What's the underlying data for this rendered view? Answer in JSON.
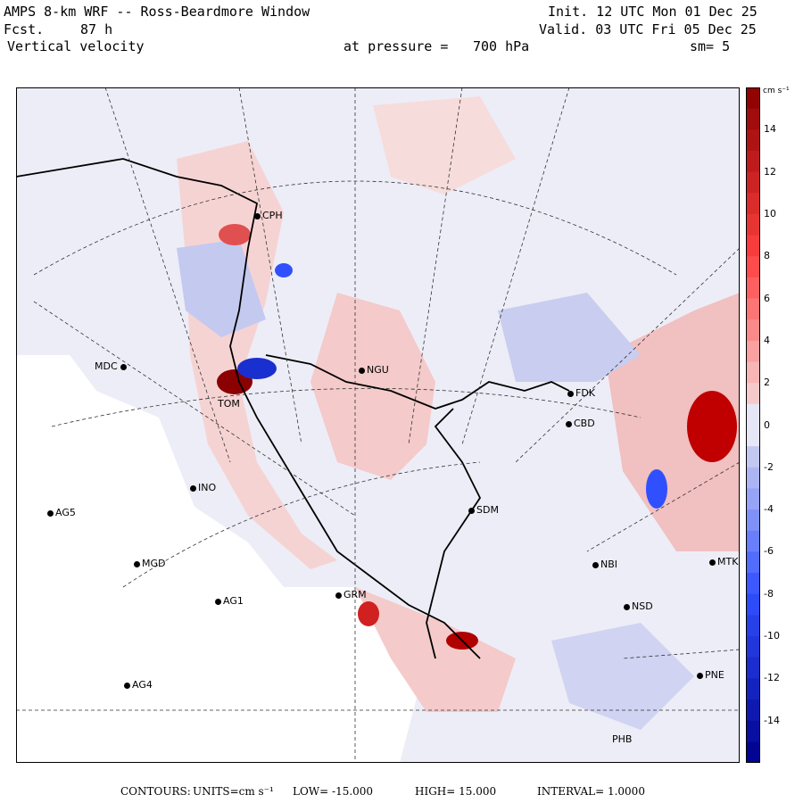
{
  "header": {
    "title": "AMPS 8-km WRF -- Ross-Beardmore Window",
    "forecast_label": "Fcst.",
    "forecast_hours": "87 h",
    "field": "Vertical velocity",
    "init": "Init. 12 UTC Mon 01 Dec 25",
    "valid": "Valid. 03 UTC Fri 05 Dec 25",
    "pressure_label": "at pressure =",
    "pressure_value": "700 hPa",
    "smoothing": "sm= 5"
  },
  "colorbar": {
    "units": "cm s⁻¹",
    "ticks": [
      "14",
      "12",
      "10",
      "8",
      "6",
      "4",
      "2",
      "0",
      "-2",
      "-4",
      "-6",
      "-8",
      "-10",
      "-12",
      "-14"
    ],
    "tick_values": [
      14,
      12,
      10,
      8,
      6,
      4,
      2,
      0,
      -2,
      -4,
      -6,
      -8,
      -10,
      -12,
      -14
    ],
    "min": -16,
    "max": 16,
    "colors": {
      "neg_strong": "#00008b",
      "neg_mid": "#3050ff",
      "neg_light": "#c8ccf2",
      "zero": "#e6e6f6",
      "pos_light": "#f6cfcf",
      "pos_mid": "#ff4040",
      "pos_strong": "#8b0000"
    }
  },
  "stations": [
    {
      "id": "CPH",
      "label": "CPH"
    },
    {
      "id": "MDC",
      "label": "MDC"
    },
    {
      "id": "NGU",
      "label": "NGU"
    },
    {
      "id": "FDK",
      "label": "FDK"
    },
    {
      "id": "CBD",
      "label": "CBD"
    },
    {
      "id": "TOM",
      "label": "TOM"
    },
    {
      "id": "INO",
      "label": "INO"
    },
    {
      "id": "AG5",
      "label": "AG5"
    },
    {
      "id": "SDM",
      "label": "SDM"
    },
    {
      "id": "MGD",
      "label": "MGD"
    },
    {
      "id": "AG1",
      "label": "AG1"
    },
    {
      "id": "GRM",
      "label": "GRM"
    },
    {
      "id": "NBI",
      "label": "NBI"
    },
    {
      "id": "MTK",
      "label": "MTK"
    },
    {
      "id": "NSD",
      "label": "NSD"
    },
    {
      "id": "AG4",
      "label": "AG4"
    },
    {
      "id": "PNE",
      "label": "PNE"
    },
    {
      "id": "PHB",
      "label": "PHB"
    }
  ],
  "footer": {
    "contours_label": "CONTOURS:",
    "units": "UNITS=cm s⁻¹",
    "low": "LOW= -15.000",
    "high": "HIGH= 15.000",
    "interval": "INTERVAL= 1.0000"
  }
}
